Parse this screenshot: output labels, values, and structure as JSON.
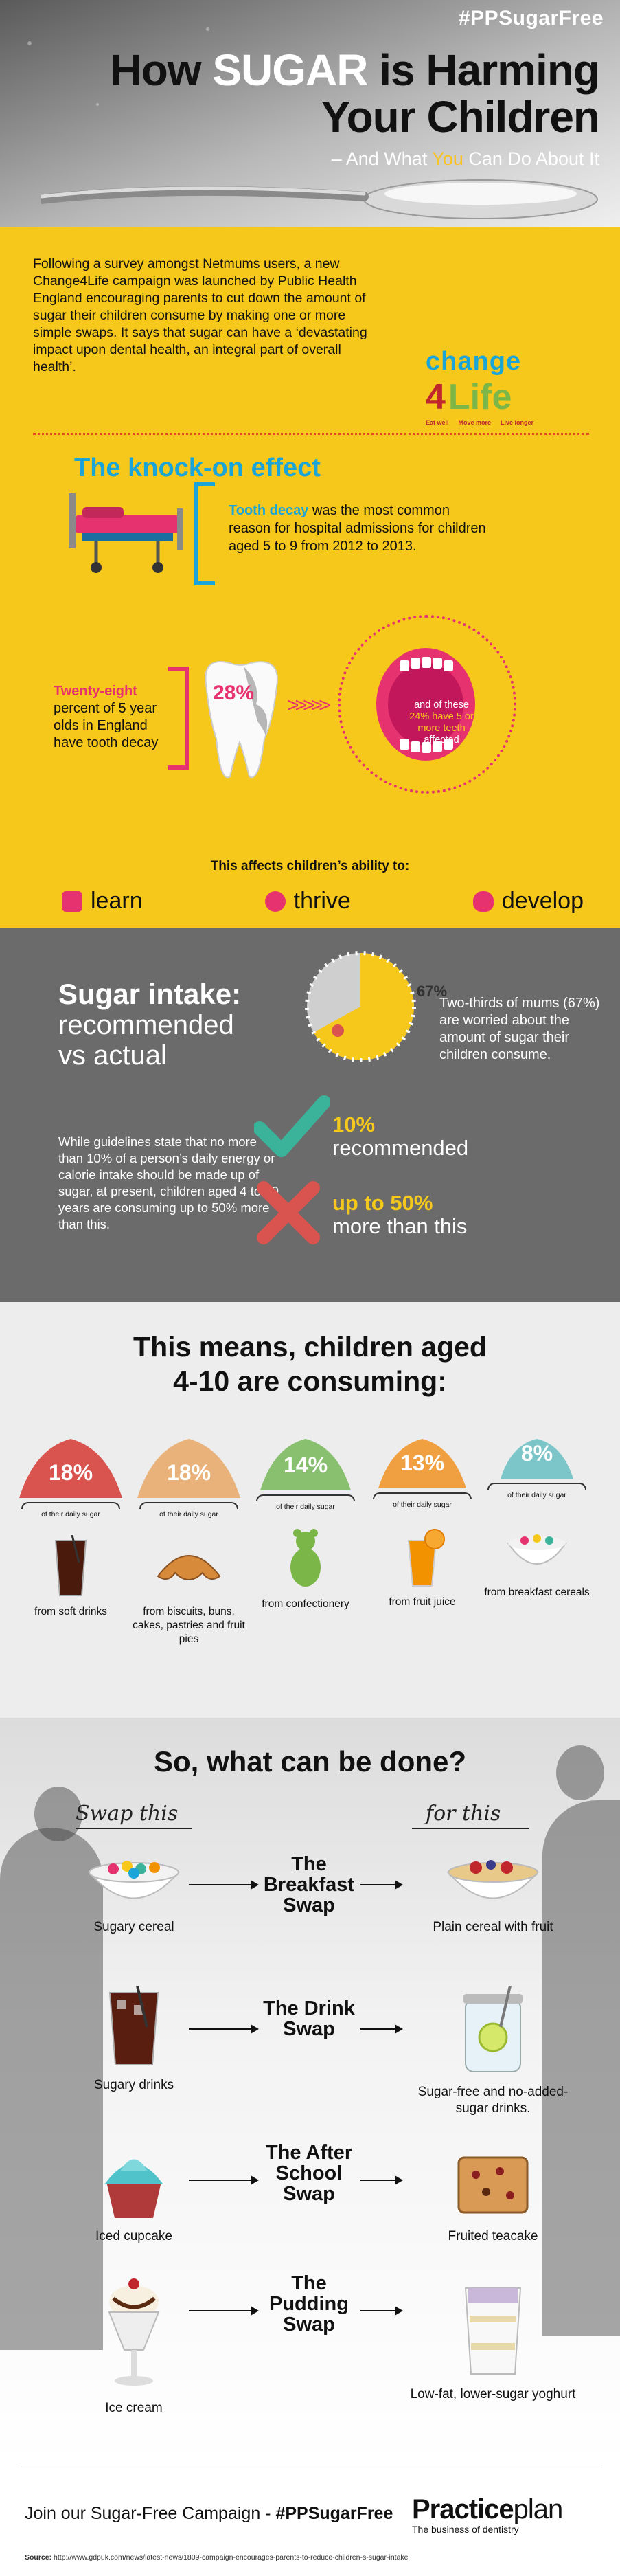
{
  "header": {
    "hashtag": "#PPSugarFree",
    "title_prefix": "How",
    "title_highlight": "SUGAR",
    "title_suffix": "is Harming",
    "title_line2": "Your Children",
    "subtitle_prefix": "– And What",
    "subtitle_highlight": "You",
    "subtitle_suffix": "Can Do About It"
  },
  "intro": {
    "text": "Following a survey amongst Netmums users, a new Change4Life campaign was launched by Public Health England encouraging parents to cut down the amount of sugar their children consume by making one or more simple swaps. It says that sugar can have a ‘devastating impact upon dental health, an integral part of overall health’."
  },
  "change4life": {
    "word": "change",
    "number": "4",
    "life": "Life",
    "taglines": [
      "Eat well",
      "Move more",
      "Live longer"
    ],
    "colors": {
      "blue": "#1aa4d8",
      "red": "#c0272d",
      "green": "#7ab648",
      "orange": "#f39200"
    }
  },
  "knock_on": {
    "title": "The knock-on effect",
    "tooth_decay_highlight": "Tooth decay",
    "tooth_decay_text": "was the most common reason for hospital admissions for children aged 5 to 9 from 2012 to 2013.",
    "twenty_eight_highlight": "Twenty-eight",
    "twenty_eight_text": "percent of 5 year olds in England have tooth decay",
    "pct_tooth": "28%",
    "mouth_prefix": "and of these",
    "mouth_highlight": "24% have 5 or more teeth",
    "mouth_suffix": "affected",
    "affects": "This affects children’s ability to:",
    "skills": [
      {
        "label": "learn",
        "icon": "book-icon"
      },
      {
        "label": "thrive",
        "icon": "smiley-icon"
      },
      {
        "label": "develop",
        "icon": "brain-icon"
      }
    ]
  },
  "intake": {
    "title_bold": "Sugar intake:",
    "title_line2": "recommended",
    "title_line3": "vs actual",
    "pie_label": "67%",
    "pie_value": 0.67,
    "mums_text": "Two-thirds of mums (67%) are worried about the amount of sugar their children consume.",
    "guidelines": "While guidelines state that no more than 10% of a person’s daily energy or calorie intake should be made up of sugar, at present, children aged 4 to 10 years are consuming up to 50% more than this.",
    "recommended_value": "10%",
    "recommended_label": "recommended",
    "more_value": "up to 50%",
    "more_label": "more than this",
    "colors": {
      "tick": "#3bb39a",
      "cross": "#d9534f"
    }
  },
  "consuming": {
    "title_line1": "This means, children aged",
    "title_line2": "4-10 are consuming:",
    "daily_label": "of their daily sugar",
    "sources": [
      {
        "pct": "18%",
        "value": 18,
        "color": "#d9534f",
        "label": "from soft drinks",
        "icon": "soft-drink-icon"
      },
      {
        "pct": "18%",
        "value": 18,
        "color": "#e8b27a",
        "label": "from biscuits, buns, cakes, pastries and fruit pies",
        "icon": "croissant-icon"
      },
      {
        "pct": "14%",
        "value": 14,
        "color": "#88c070",
        "label": "from confectionery",
        "icon": "gummy-bear-icon"
      },
      {
        "pct": "13%",
        "value": 13,
        "color": "#f0a040",
        "label": "from fruit juice",
        "icon": "orange-juice-icon"
      },
      {
        "pct": "8%",
        "value": 8,
        "color": "#7cc6c9",
        "label": "from breakfast cereals",
        "icon": "cereal-bowl-icon"
      }
    ]
  },
  "swaps": {
    "title": "So, what can be done?",
    "swap_this": "Swap this",
    "for_this": "for this",
    "rows": [
      {
        "name": "The Breakfast Swap",
        "from": "Sugary cereal",
        "to": "Plain cereal with fruit"
      },
      {
        "name": "The Drink Swap",
        "from": "Sugary drinks",
        "to": "Sugar-free and no-added-sugar drinks."
      },
      {
        "name": "The After School Swap",
        "from": "Iced cupcake",
        "to": "Fruited teacake"
      },
      {
        "name": "The Pudding Swap",
        "from": "Ice cream",
        "to": "Low-fat, lower-sugar yoghurt"
      }
    ]
  },
  "footer": {
    "join_text": "Join our Sugar-Free Campaign -",
    "join_hashtag": "#PPSugarFree",
    "logo_bold": "Practice",
    "logo_light": "plan",
    "logo_tag": "The business of dentistry",
    "source_label": "Source:",
    "source_url": "http://www.gdpuk.com/news/latest-news/1809-campaign-encourages-parents-to-reduce-children-s-sugar-intake"
  }
}
